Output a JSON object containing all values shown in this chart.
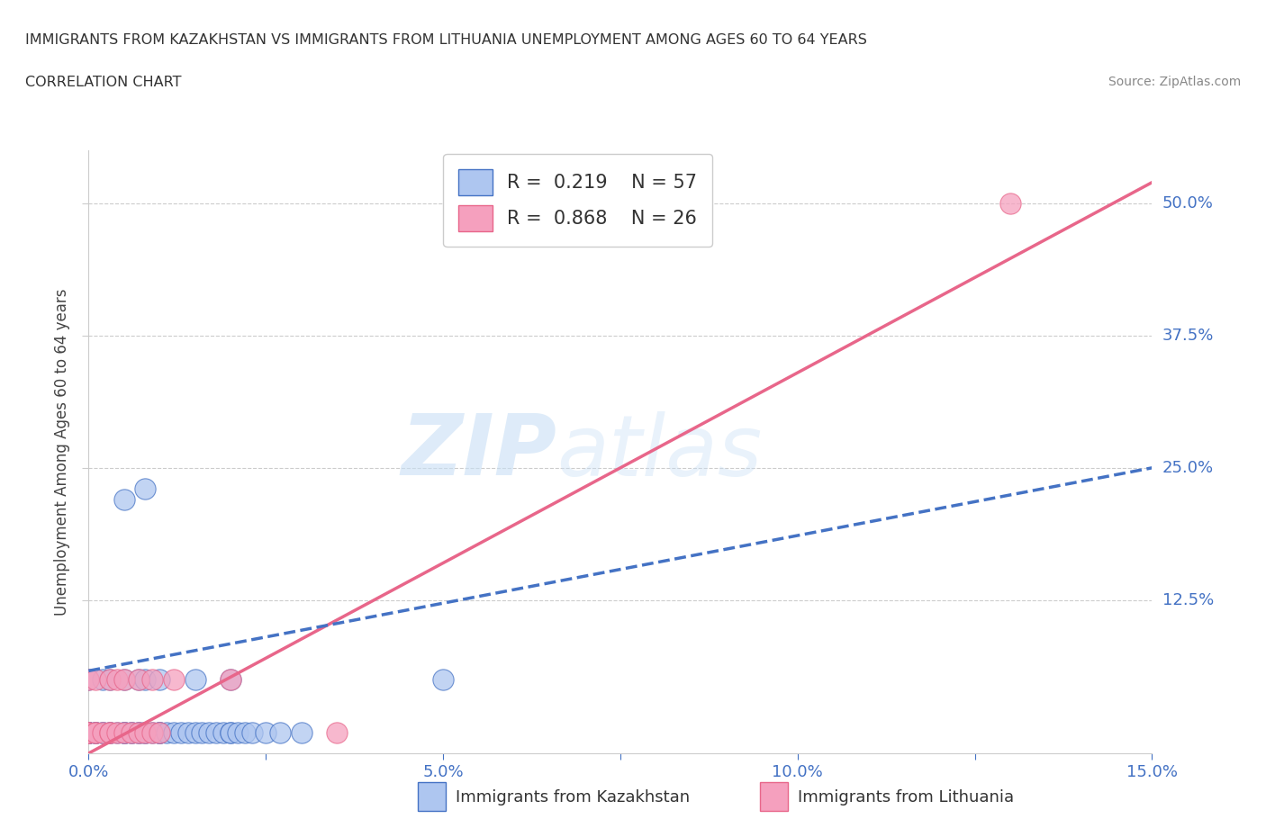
{
  "title_line1": "IMMIGRANTS FROM KAZAKHSTAN VS IMMIGRANTS FROM LITHUANIA UNEMPLOYMENT AMONG AGES 60 TO 64 YEARS",
  "title_line2": "CORRELATION CHART",
  "source": "Source: ZipAtlas.com",
  "ylabel": "Unemployment Among Ages 60 to 64 years",
  "xlim": [
    0.0,
    0.15
  ],
  "ylim": [
    -0.02,
    0.55
  ],
  "ylim_display": [
    0.0,
    0.55
  ],
  "xtick_labels": [
    "0.0%",
    "",
    "5.0%",
    "",
    "10.0%",
    "",
    "15.0%"
  ],
  "xtick_values": [
    0.0,
    0.025,
    0.05,
    0.075,
    0.1,
    0.125,
    0.15
  ],
  "ytick_labels": [
    "12.5%",
    "25.0%",
    "37.5%",
    "50.0%"
  ],
  "ytick_values": [
    0.125,
    0.25,
    0.375,
    0.5
  ],
  "kaz_color": "#aec6f0",
  "lit_color": "#f5a0be",
  "kaz_edge_color": "#4472c4",
  "lit_edge_color": "#e8668a",
  "kaz_line_color": "#4472c4",
  "lit_line_color": "#e8668a",
  "background_color": "#ffffff",
  "grid_color": "#cccccc",
  "watermark_zip": "ZIP",
  "watermark_atlas": "atlas",
  "legend_kaz_R": "0.219",
  "legend_kaz_N": "57",
  "legend_lit_R": "0.868",
  "legend_lit_N": "26",
  "kaz_trend_x0": 0.0,
  "kaz_trend_y0": 0.058,
  "kaz_trend_x1": 0.15,
  "kaz_trend_y1": 0.25,
  "lit_trend_x0": 0.0,
  "lit_trend_y0": -0.02,
  "lit_trend_x1": 0.15,
  "lit_trend_y1": 0.52,
  "kaz_scatter": [
    [
      0.0,
      0.0
    ],
    [
      0.0,
      0.0
    ],
    [
      0.0,
      0.0
    ],
    [
      0.0,
      0.0
    ],
    [
      0.0,
      0.0
    ],
    [
      0.0,
      0.0
    ],
    [
      0.0,
      0.0
    ],
    [
      0.001,
      0.0
    ],
    [
      0.001,
      0.0
    ],
    [
      0.001,
      0.0
    ],
    [
      0.002,
      0.0
    ],
    [
      0.002,
      0.0
    ],
    [
      0.003,
      0.0
    ],
    [
      0.003,
      0.0
    ],
    [
      0.004,
      0.0
    ],
    [
      0.005,
      0.0
    ],
    [
      0.005,
      0.0
    ],
    [
      0.005,
      0.0
    ],
    [
      0.006,
      0.0
    ],
    [
      0.006,
      0.0
    ],
    [
      0.007,
      0.0
    ],
    [
      0.007,
      0.0
    ],
    [
      0.008,
      0.0
    ],
    [
      0.008,
      0.0
    ],
    [
      0.009,
      0.0
    ],
    [
      0.01,
      0.0
    ],
    [
      0.01,
      0.0
    ],
    [
      0.01,
      0.0
    ],
    [
      0.011,
      0.0
    ],
    [
      0.012,
      0.0
    ],
    [
      0.013,
      0.0
    ],
    [
      0.014,
      0.0
    ],
    [
      0.015,
      0.0
    ],
    [
      0.016,
      0.0
    ],
    [
      0.017,
      0.0
    ],
    [
      0.018,
      0.0
    ],
    [
      0.019,
      0.0
    ],
    [
      0.02,
      0.0
    ],
    [
      0.02,
      0.0
    ],
    [
      0.021,
      0.0
    ],
    [
      0.022,
      0.0
    ],
    [
      0.023,
      0.0
    ],
    [
      0.025,
      0.0
    ],
    [
      0.027,
      0.0
    ],
    [
      0.03,
      0.0
    ],
    [
      0.0,
      0.05
    ],
    [
      0.002,
      0.05
    ],
    [
      0.003,
      0.05
    ],
    [
      0.005,
      0.05
    ],
    [
      0.007,
      0.05
    ],
    [
      0.008,
      0.05
    ],
    [
      0.01,
      0.05
    ],
    [
      0.015,
      0.05
    ],
    [
      0.02,
      0.05
    ],
    [
      0.05,
      0.05
    ],
    [
      0.005,
      0.22
    ],
    [
      0.008,
      0.23
    ]
  ],
  "lit_scatter": [
    [
      0.0,
      0.0
    ],
    [
      0.0,
      0.0
    ],
    [
      0.0,
      0.0
    ],
    [
      0.001,
      0.0
    ],
    [
      0.001,
      0.0
    ],
    [
      0.002,
      0.0
    ],
    [
      0.003,
      0.0
    ],
    [
      0.003,
      0.0
    ],
    [
      0.004,
      0.0
    ],
    [
      0.005,
      0.0
    ],
    [
      0.006,
      0.0
    ],
    [
      0.007,
      0.0
    ],
    [
      0.008,
      0.0
    ],
    [
      0.009,
      0.0
    ],
    [
      0.01,
      0.0
    ],
    [
      0.0,
      0.05
    ],
    [
      0.001,
      0.05
    ],
    [
      0.003,
      0.05
    ],
    [
      0.004,
      0.05
    ],
    [
      0.005,
      0.05
    ],
    [
      0.007,
      0.05
    ],
    [
      0.009,
      0.05
    ],
    [
      0.012,
      0.05
    ],
    [
      0.02,
      0.05
    ],
    [
      0.13,
      0.5
    ],
    [
      0.035,
      0.0
    ]
  ]
}
